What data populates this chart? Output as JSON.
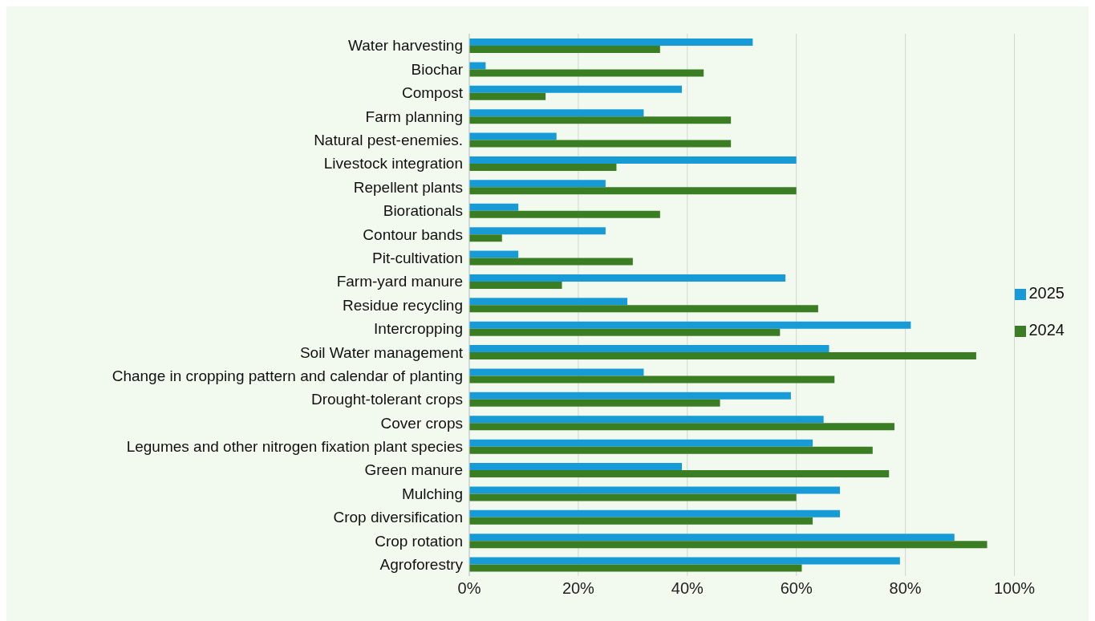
{
  "chart_data": {
    "type": "bar",
    "orientation": "horizontal",
    "categories": [
      "Water harvesting",
      "Biochar",
      "Compost",
      "Farm planning",
      "Natural pest-enemies.",
      "Livestock integration",
      "Repellent plants",
      "Biorationals",
      "Contour bands",
      "Pit-cultivation",
      "Farm-yard manure",
      "Residue recycling",
      "Intercropping",
      "Soil Water management",
      "Change in cropping pattern and calendar of planting",
      "Drought-tolerant crops",
      "Cover crops",
      "Legumes and other nitrogen fixation plant species",
      "Green manure",
      "Mulching",
      "Crop diversification",
      "Crop rotation",
      "Agroforestry"
    ],
    "series": [
      {
        "name": "2025",
        "color": "#179bd7",
        "values": [
          52,
          3,
          39,
          32,
          16,
          60,
          25,
          9,
          25,
          9,
          58,
          29,
          81,
          66,
          32,
          59,
          65,
          63,
          39,
          68,
          68,
          89,
          79
        ]
      },
      {
        "name": "2024",
        "color": "#3b7d23",
        "values": [
          35,
          43,
          14,
          48,
          48,
          27,
          60,
          35,
          6,
          30,
          17,
          64,
          57,
          93,
          67,
          46,
          78,
          74,
          77,
          60,
          63,
          95,
          61
        ]
      }
    ],
    "xlim": [
      0,
      100
    ],
    "xticks": [
      {
        "value": 0,
        "label": "0%"
      },
      {
        "value": 20,
        "label": "20%"
      },
      {
        "value": 40,
        "label": "40%"
      },
      {
        "value": 60,
        "label": "60%"
      },
      {
        "value": 80,
        "label": "80%"
      },
      {
        "value": 100,
        "label": "100%"
      }
    ],
    "grid": "x",
    "legend": "right"
  }
}
